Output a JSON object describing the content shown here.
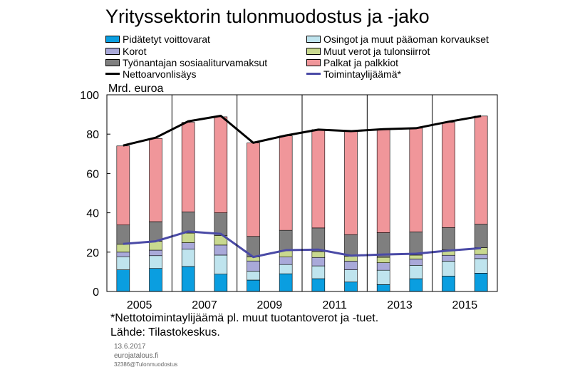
{
  "chart_data": {
    "type": "bar",
    "title": "Yrityssektorin tulonmuodostus ja -jako",
    "unit_label": "Mrd. euroa",
    "ylim": [
      0,
      100
    ],
    "yticks": [
      0,
      20,
      40,
      60,
      80,
      100
    ],
    "x": [
      2005,
      2006,
      2007,
      2008,
      2009,
      2010,
      2011,
      2012,
      2013,
      2014,
      2015,
      2016
    ],
    "xtick_labels": [
      "2005",
      "2007",
      "2009",
      "2011",
      "2013",
      "2015"
    ],
    "grid": false,
    "stacked": true,
    "series": [
      {
        "name": "Pidätetyt voittovarat",
        "kind": "bar",
        "color": "#0a9ee0",
        "values": [
          11,
          11.7,
          12.7,
          8.8,
          5.8,
          9,
          6.5,
          4.8,
          3.5,
          6.5,
          7.8,
          9.3
        ]
      },
      {
        "name": "Osingot ja muut pääoman korvaukset",
        "kind": "bar",
        "color": "#bfe4ee",
        "values": [
          6.7,
          6.5,
          8.8,
          9.7,
          4.5,
          4.7,
          6.5,
          6.2,
          7.3,
          6.8,
          7.6,
          7.4
        ]
      },
      {
        "name": "Korot",
        "kind": "bar",
        "color": "#a9a9d9",
        "values": [
          2.3,
          2.8,
          3.3,
          5.1,
          5.2,
          3.8,
          4.3,
          4.4,
          3.8,
          3.2,
          3,
          2.1
        ]
      },
      {
        "name": "Muut verot ja tulonsiirrot",
        "kind": "bar",
        "color": "#c9d98f",
        "values": [
          4,
          4.5,
          4.9,
          4.9,
          2,
          3.3,
          3,
          2.5,
          2.8,
          2,
          2.8,
          3.5
        ]
      },
      {
        "name": "Työnantajan sosiaaliturvamaksut",
        "kind": "bar",
        "color": "#7f7f7f",
        "values": [
          9.8,
          10,
          10.8,
          11.5,
          10.5,
          10.3,
          12,
          11,
          12.5,
          11.8,
          11.3,
          11.9
        ]
      },
      {
        "name": "Palkat ja palkkiot",
        "kind": "bar",
        "color": "#f0969a",
        "values": [
          40.2,
          42.3,
          45.5,
          48.8,
          47.5,
          48,
          50,
          52.6,
          52.6,
          52.7,
          53.5,
          55
        ]
      },
      {
        "name": "Nettoarvonlisäys",
        "kind": "line",
        "color": "#000000",
        "values": [
          74.2,
          78.2,
          86.5,
          89.3,
          75.6,
          79.3,
          82.3,
          81.5,
          82.5,
          83,
          86.3,
          89.2
        ]
      },
      {
        "name": "Toimintaylijäämä*",
        "kind": "line",
        "color": "#4a4aa6",
        "values": [
          24.2,
          25.5,
          30.5,
          29.3,
          17.5,
          21,
          21.3,
          18.2,
          18.8,
          19.2,
          20.8,
          22
        ]
      }
    ]
  },
  "notes": {
    "footnote": "*Nettotoimintaylijäämä pl. muut tuotantoverot ja -tuet.",
    "source": "Lähde: Tilastokeskus.",
    "date": "13.6.2017",
    "site": "eurojatalous.fi",
    "code": "32386@Tulonmuodostus"
  }
}
